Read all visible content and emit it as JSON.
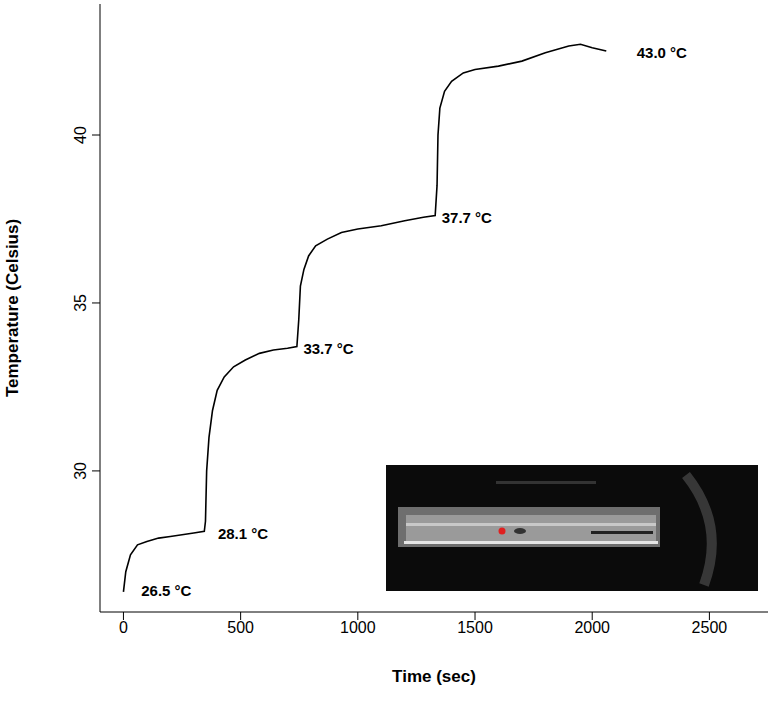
{
  "chart_data": {
    "type": "line",
    "x_label": "Time (sec)",
    "y_label": "Temperature (Celsius)",
    "color": "#000000",
    "grid": false,
    "xlim": [
      -100,
      2750
    ],
    "ylim": [
      25.8,
      43.9
    ],
    "xticks": [
      0,
      500,
      1000,
      1500,
      2000,
      2500
    ],
    "yticks": [
      30,
      35,
      40
    ],
    "x": [
      0,
      10,
      30,
      60,
      100,
      150,
      200,
      250,
      300,
      345,
      350,
      355,
      365,
      380,
      400,
      430,
      470,
      520,
      580,
      640,
      700,
      740,
      748,
      755,
      770,
      790,
      820,
      870,
      930,
      1000,
      1100,
      1200,
      1280,
      1330,
      1338,
      1342,
      1350,
      1370,
      1400,
      1450,
      1500,
      1600,
      1700,
      1800,
      1900,
      1950,
      2000,
      2060
    ],
    "values": [
      26.4,
      27.0,
      27.5,
      27.8,
      27.9,
      28.0,
      28.05,
      28.1,
      28.15,
      28.2,
      28.5,
      30.0,
      31.0,
      31.8,
      32.4,
      32.8,
      33.1,
      33.3,
      33.5,
      33.6,
      33.65,
      33.7,
      34.5,
      35.5,
      36.0,
      36.4,
      36.7,
      36.9,
      37.1,
      37.2,
      37.3,
      37.45,
      37.55,
      37.6,
      38.5,
      40.0,
      40.8,
      41.3,
      41.6,
      41.85,
      41.95,
      42.05,
      42.2,
      42.45,
      42.65,
      42.7,
      42.6,
      42.5
    ],
    "annotations": [
      {
        "text": "26.5 °C",
        "x": 76,
        "y": 26.4
      },
      {
        "text": "28.1 °C",
        "x": 403,
        "y": 28.1
      },
      {
        "text": "33.7 °C",
        "x": 768,
        "y": 33.6
      },
      {
        "text": "37.7 °C",
        "x": 1358,
        "y": 37.5
      },
      {
        "text": "43.0 °C",
        "x": 2190,
        "y": 42.4
      }
    ]
  }
}
